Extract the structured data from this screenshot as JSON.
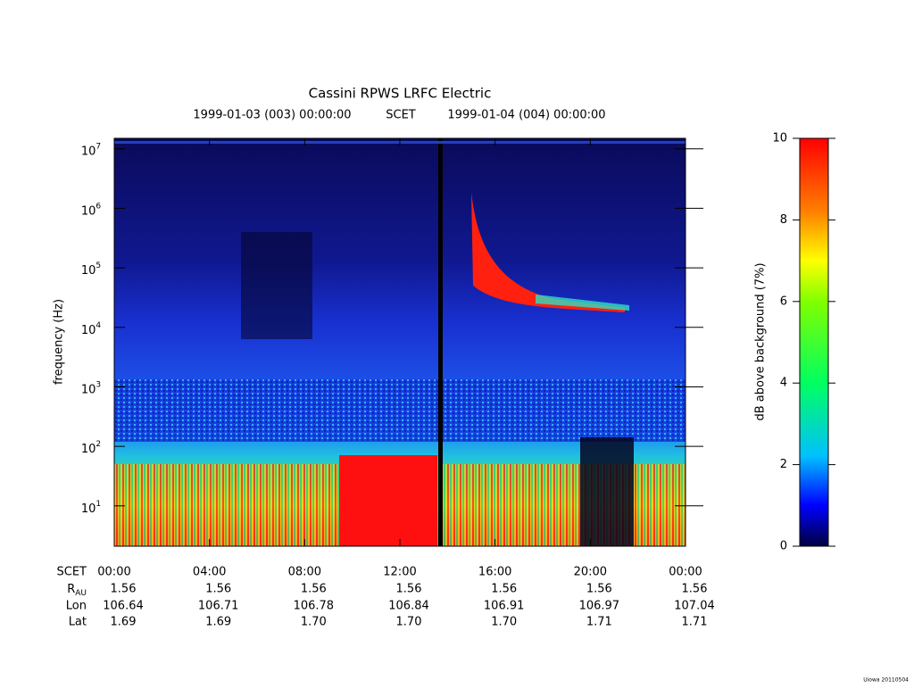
{
  "chart_data": {
    "type": "spectrogram",
    "title": "Cassini RPWS LRFC Electric",
    "start_time": "1999-01-03 (003) 00:00:00",
    "time_system": "SCET",
    "end_time": "1999-01-04 (004) 00:00:00",
    "y_label": "frequency (Hz)",
    "y_log": true,
    "ylim": [
      2.1,
      15000000
    ],
    "yticks": [
      {
        "value": 10,
        "label": "10^1"
      },
      {
        "value": 100,
        "label": "10^2"
      },
      {
        "value": 1000,
        "label": "10^3"
      },
      {
        "value": 10000,
        "label": "10^4"
      },
      {
        "value": 100000,
        "label": "10^5"
      },
      {
        "value": 1000000,
        "label": "10^6"
      },
      {
        "value": 10000000,
        "label": "10^7"
      }
    ],
    "xlim": [
      0,
      24
    ],
    "xticks": [
      {
        "value": 0,
        "label": "00:00"
      },
      {
        "value": 4,
        "label": "04:00"
      },
      {
        "value": 8,
        "label": "08:00"
      },
      {
        "value": 12,
        "label": "12:00"
      },
      {
        "value": 16,
        "label": "16:00"
      },
      {
        "value": 20,
        "label": "20:00"
      },
      {
        "value": 24,
        "label": "00:00"
      }
    ],
    "x_row_label": "SCET",
    "ephemeris": [
      {
        "name": "R_AU",
        "values": [
          "1.56",
          "1.56",
          "1.56",
          "1.56",
          "1.56",
          "1.56",
          "1.56"
        ]
      },
      {
        "name": "Lon",
        "values": [
          "106.64",
          "106.71",
          "106.78",
          "106.84",
          "106.91",
          "106.97",
          "107.04"
        ]
      },
      {
        "name": "Lat",
        "values": [
          "1.69",
          "1.69",
          "1.70",
          "1.70",
          "1.70",
          "1.71",
          "1.71"
        ]
      }
    ],
    "colorbar": {
      "label": "dB above background (7%)",
      "lim": [
        0,
        10
      ],
      "ticks": [
        0,
        2,
        4,
        6,
        8,
        10
      ]
    },
    "footer": "Uiowa 20110504"
  }
}
